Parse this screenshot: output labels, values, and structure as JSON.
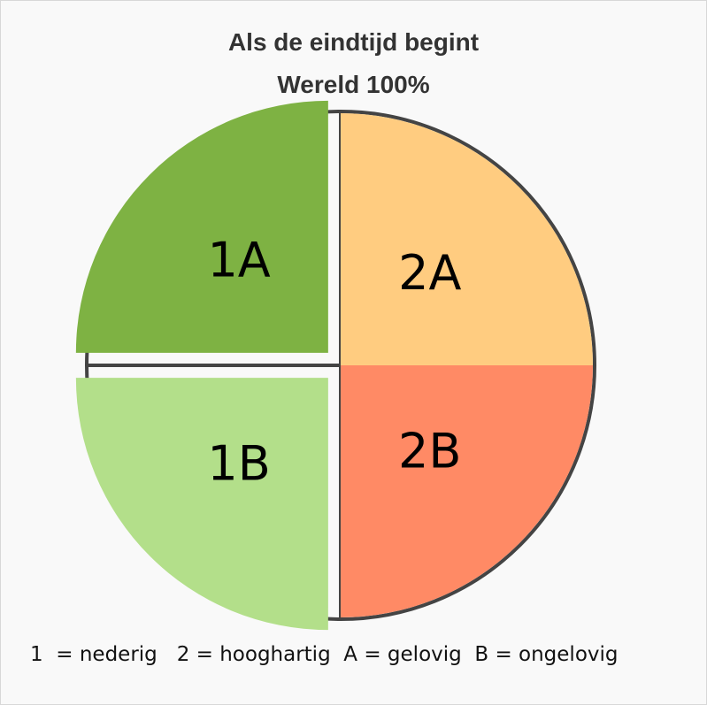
{
  "chart_data": {
    "type": "pie",
    "title": "Als de eindtijd begint",
    "subtitle": "Wereld 100%",
    "slices": [
      {
        "label": "2A",
        "value": 25,
        "color": "#ffcc80",
        "exploded": false
      },
      {
        "label": "2B",
        "value": 25,
        "color": "#ff8a65",
        "exploded": false
      },
      {
        "label": "1B",
        "value": 25,
        "color": "#b3df8a",
        "exploded": true
      },
      {
        "label": "1A",
        "value": 25,
        "color": "#7eb243",
        "exploded": true
      }
    ],
    "outline_color": "#444444",
    "legend_text": "1  = nederig   2 = hooghartig  A = gelovig  B = ongelovig"
  }
}
